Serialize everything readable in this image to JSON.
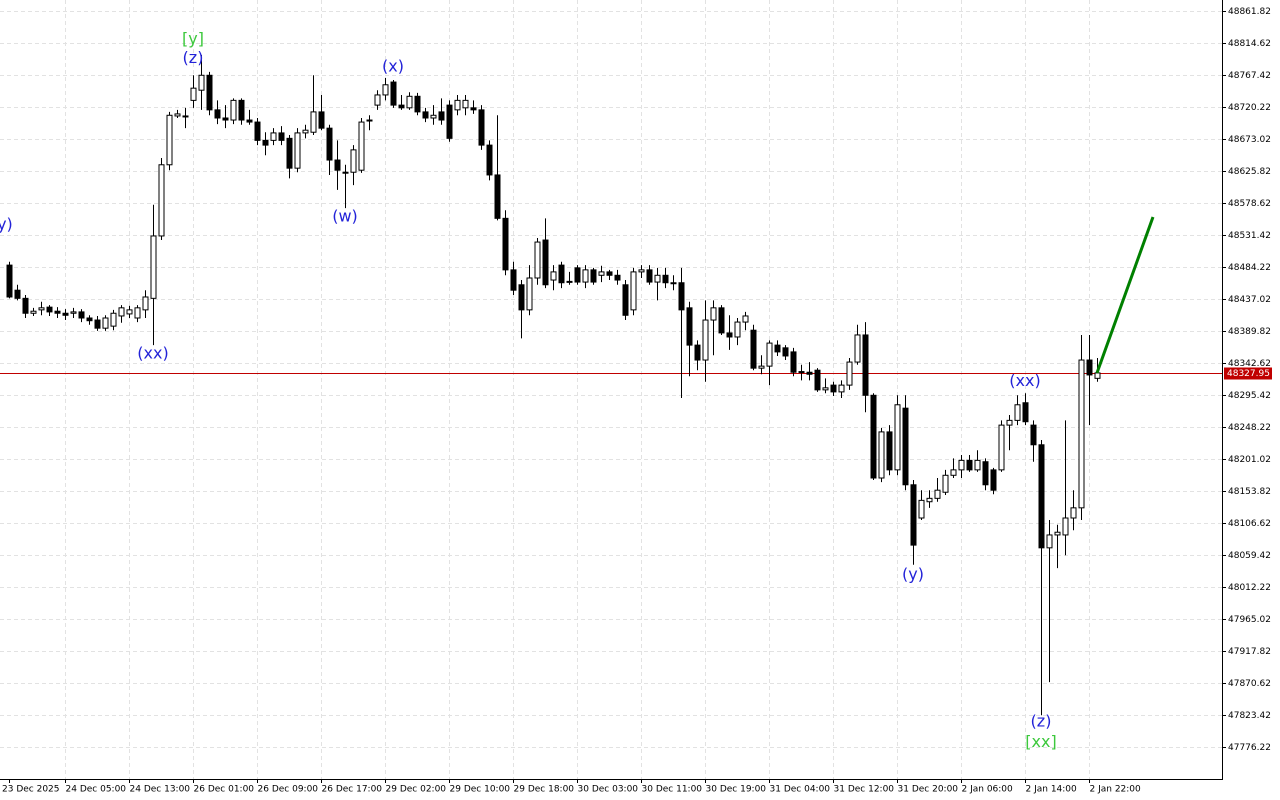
{
  "chart_data": {
    "type": "candlestick",
    "ylim": [
      47729.03,
      48878.04
    ],
    "yticks": [
      48861.82,
      48814.62,
      48767.42,
      48720.22,
      48673.02,
      48625.82,
      48578.62,
      48531.42,
      48484.22,
      48437.02,
      48389.82,
      48342.62,
      48295.42,
      48248.22,
      48201.02,
      48153.82,
      48106.62,
      48059.42,
      48012.22,
      47965.02,
      47917.82,
      47870.62,
      47823.42,
      47776.22
    ],
    "grid": true,
    "current_price": 48327.95,
    "price_line_color": "#c00000",
    "bull_color": "#ffffff",
    "bear_color": "#000000",
    "categories": [
      "23 Dec 2025",
      null,
      null,
      null,
      null,
      null,
      null,
      "24 Dec 05:00",
      null,
      null,
      null,
      null,
      null,
      null,
      null,
      "24 Dec 13:00",
      null,
      null,
      null,
      null,
      null,
      null,
      null,
      "26 Dec 01:00",
      null,
      null,
      null,
      null,
      null,
      null,
      null,
      "26 Dec 09:00",
      null,
      null,
      null,
      null,
      null,
      null,
      null,
      "26 Dec 17:00",
      null,
      null,
      null,
      null,
      null,
      null,
      null,
      "29 Dec 02:00",
      null,
      null,
      null,
      null,
      null,
      null,
      null,
      "29 Dec 10:00",
      null,
      null,
      null,
      null,
      null,
      null,
      null,
      "29 Dec 18:00",
      null,
      null,
      null,
      null,
      null,
      null,
      null,
      "30 Dec 03:00",
      null,
      null,
      null,
      null,
      null,
      null,
      null,
      "30 Dec 11:00",
      null,
      null,
      null,
      null,
      null,
      null,
      null,
      "30 Dec 19:00",
      null,
      null,
      null,
      null,
      null,
      null,
      null,
      "31 Dec 04:00",
      null,
      null,
      null,
      null,
      null,
      null,
      null,
      "31 Dec 12:00",
      null,
      null,
      null,
      null,
      null,
      null,
      null,
      "31 Dec 20:00",
      null,
      null,
      null,
      null,
      null,
      null,
      null,
      "2 Jan 06:00",
      null,
      null,
      null,
      null,
      null,
      null,
      null,
      "2 Jan 14:00",
      null,
      null,
      null,
      null,
      null,
      null,
      null,
      "2 Jan 22:00",
      null
    ],
    "ohlc": [
      [
        48487,
        48492,
        48438,
        48440
      ],
      [
        48450,
        48458,
        48435,
        48438
      ],
      [
        48438,
        48443,
        48409,
        48416
      ],
      [
        48416,
        48424,
        48412,
        48419
      ],
      [
        48421,
        48433,
        48413,
        48424
      ],
      [
        48425,
        48428,
        48412,
        48418
      ],
      [
        48419,
        48425,
        48409,
        48416
      ],
      [
        48416,
        48422,
        48406,
        48413
      ],
      [
        48416,
        48424,
        48409,
        48418
      ],
      [
        48418,
        48422,
        48403,
        48409
      ],
      [
        48409,
        48413,
        48399,
        48405
      ],
      [
        48406,
        48412,
        48390,
        48394
      ],
      [
        48394,
        48413,
        48390,
        48409
      ],
      [
        48397,
        48421,
        48391,
        48416
      ],
      [
        48412,
        48428,
        48402,
        48424
      ],
      [
        48415,
        48427,
        48409,
        48421
      ],
      [
        48409,
        48428,
        48403,
        48424
      ],
      [
        48421,
        48450,
        48409,
        48440
      ],
      [
        48438,
        48576,
        48369,
        48530
      ],
      [
        48530,
        48645,
        48524,
        48635
      ],
      [
        48635,
        48713,
        48627,
        48708
      ],
      [
        48707,
        48716,
        48704,
        48710
      ],
      [
        48707,
        48719,
        48689,
        48706
      ],
      [
        48730,
        48767,
        48719,
        48748
      ],
      [
        48745,
        48797,
        48716,
        48767
      ],
      [
        48767,
        48772,
        48708,
        48716
      ],
      [
        48716,
        48730,
        48695,
        48704
      ],
      [
        48704,
        48723,
        48689,
        48701
      ],
      [
        48701,
        48733,
        48695,
        48730
      ],
      [
        48730,
        48733,
        48694,
        48701
      ],
      [
        48701,
        48716,
        48694,
        48698
      ],
      [
        48698,
        48704,
        48664,
        48671
      ],
      [
        48671,
        48683,
        48649,
        48664
      ],
      [
        48671,
        48689,
        48664,
        48682
      ],
      [
        48682,
        48692,
        48664,
        48671
      ],
      [
        48674,
        48679,
        48615,
        48630
      ],
      [
        48630,
        48689,
        48624,
        48682
      ],
      [
        48682,
        48694,
        48674,
        48686
      ],
      [
        48683,
        48767,
        48679,
        48713
      ],
      [
        48713,
        48738,
        48686,
        48689
      ],
      [
        48689,
        48694,
        48620,
        48642
      ],
      [
        48642,
        48671,
        48598,
        48627
      ],
      [
        48624,
        48635,
        48571,
        48623
      ],
      [
        48624,
        48664,
        48605,
        48657
      ],
      [
        48627,
        48704,
        48623,
        48698
      ],
      [
        48701,
        48708,
        48686,
        48700
      ],
      [
        48723,
        48745,
        48716,
        48738
      ],
      [
        48738,
        48763,
        48730,
        48753
      ],
      [
        48757,
        48760,
        48719,
        48723
      ],
      [
        48723,
        48738,
        48716,
        48719
      ],
      [
        48719,
        48742,
        48716,
        48736
      ],
      [
        48736,
        48741,
        48708,
        48713
      ],
      [
        48713,
        48719,
        48698,
        48704
      ],
      [
        48704,
        48723,
        48694,
        48708
      ],
      [
        48713,
        48733,
        48694,
        48701
      ],
      [
        48723,
        48730,
        48669,
        48674
      ],
      [
        48716,
        48738,
        48708,
        48730
      ],
      [
        48719,
        48738,
        48708,
        48730
      ],
      [
        48719,
        48730,
        48710,
        48716
      ],
      [
        48716,
        48723,
        48657,
        48664
      ],
      [
        48664,
        48671,
        48612,
        48620
      ],
      [
        48620,
        48708,
        48553,
        48556
      ],
      [
        48556,
        48568,
        48472,
        48480
      ],
      [
        48480,
        48492,
        48443,
        48450
      ],
      [
        48458,
        48465,
        48379,
        48421
      ],
      [
        48421,
        48487,
        48413,
        48468
      ],
      [
        48468,
        48527,
        48458,
        48521
      ],
      [
        48524,
        48556,
        48453,
        48458
      ],
      [
        48465,
        48487,
        48450,
        48477
      ],
      [
        48487,
        48492,
        48453,
        48461
      ],
      [
        48462,
        48477,
        48458,
        48463
      ],
      [
        48483,
        48487,
        48458,
        48462
      ],
      [
        48462,
        48487,
        48453,
        48480
      ],
      [
        48480,
        48483,
        48458,
        48462
      ],
      [
        48472,
        48486,
        48462,
        48477
      ],
      [
        48477,
        48480,
        48465,
        48472
      ],
      [
        48472,
        48480,
        48458,
        48465
      ],
      [
        48458,
        48465,
        48406,
        48413
      ],
      [
        48421,
        48483,
        48413,
        48477
      ],
      [
        48477,
        48487,
        48468,
        48480
      ],
      [
        48480,
        48487,
        48458,
        48462
      ],
      [
        48462,
        48483,
        48435,
        48472
      ],
      [
        48472,
        48483,
        48453,
        48461
      ],
      [
        48461,
        48472,
        48450,
        48460
      ],
      [
        48461,
        48483,
        48291,
        48421
      ],
      [
        48424,
        48433,
        48323,
        48369
      ],
      [
        48369,
        48376,
        48332,
        48347
      ],
      [
        48347,
        48435,
        48315,
        48406
      ],
      [
        48406,
        48435,
        48354,
        48424
      ],
      [
        48424,
        48428,
        48384,
        48387
      ],
      [
        48387,
        48413,
        48362,
        48381
      ],
      [
        48381,
        48409,
        48369,
        48403
      ],
      [
        48403,
        48418,
        48391,
        48412
      ],
      [
        48391,
        48399,
        48332,
        48335
      ],
      [
        48335,
        48354,
        48326,
        48338
      ],
      [
        48338,
        48376,
        48310,
        48372
      ],
      [
        48369,
        48376,
        48353,
        48359
      ],
      [
        48365,
        48369,
        48347,
        48353
      ],
      [
        48359,
        48365,
        48323,
        48329
      ],
      [
        48329,
        48340,
        48317,
        48330
      ],
      [
        48329,
        48344,
        48317,
        48326
      ],
      [
        48332,
        48335,
        48300,
        48303
      ],
      [
        48303,
        48320,
        48298,
        48306
      ],
      [
        48310,
        48315,
        48294,
        48300
      ],
      [
        48300,
        48317,
        48291,
        48310
      ],
      [
        48310,
        48350,
        48303,
        48344
      ],
      [
        48344,
        48399,
        48340,
        48384
      ],
      [
        48384,
        48403,
        48270,
        48295
      ],
      [
        48295,
        48298,
        48170,
        48173
      ],
      [
        48173,
        48247,
        48167,
        48241
      ],
      [
        48241,
        48251,
        48177,
        48185
      ],
      [
        48185,
        48295,
        48177,
        48281
      ],
      [
        48276,
        48295,
        48155,
        48163
      ],
      [
        48163,
        48170,
        48045,
        48074
      ],
      [
        48114,
        48155,
        48111,
        48140
      ],
      [
        48138,
        48155,
        48129,
        48143
      ],
      [
        48143,
        48173,
        48138,
        48155
      ],
      [
        48152,
        48185,
        48148,
        48177
      ],
      [
        48177,
        48202,
        48173,
        48185
      ],
      [
        48185,
        48207,
        48173,
        48199
      ],
      [
        48199,
        48207,
        48182,
        48185
      ],
      [
        48185,
        48214,
        48182,
        48199
      ],
      [
        48197,
        48202,
        48155,
        48163
      ],
      [
        48185,
        48188,
        48149,
        48155
      ],
      [
        48185,
        48258,
        48182,
        48251
      ],
      [
        48251,
        48266,
        48214,
        48258
      ],
      [
        48258,
        48295,
        48251,
        48281
      ],
      [
        48284,
        48298,
        48251,
        48256
      ],
      [
        48251,
        48258,
        48197,
        48222
      ],
      [
        48222,
        48229,
        47823,
        48070
      ],
      [
        48070,
        48111,
        47872,
        48089
      ],
      [
        48089,
        48104,
        48040,
        48093
      ],
      [
        48089,
        48258,
        48059,
        48114
      ],
      [
        48114,
        48155,
        48096,
        48129
      ],
      [
        48129,
        48384,
        48111,
        48347
      ],
      [
        48347,
        48384,
        48251,
        48325
      ],
      [
        48320,
        48350,
        48315,
        48328
      ]
    ],
    "forecast": {
      "color": "#008000",
      "x": [
        136,
        143
      ],
      "y": [
        48328,
        48558
      ]
    },
    "annotations": [
      {
        "text": "(y)",
        "index": -0.9,
        "price": 48546,
        "color": "#2323d8"
      },
      {
        "text": "[y]",
        "index": 23,
        "price": 48820,
        "color": "#3cc83c"
      },
      {
        "text": "(z)",
        "index": 23,
        "price": 48792,
        "color": "#2323d8"
      },
      {
        "text": "(x)",
        "index": 48,
        "price": 48779,
        "color": "#2323d8"
      },
      {
        "text": "(w)",
        "index": 42,
        "price": 48558,
        "color": "#2323d8"
      },
      {
        "text": "(xx)",
        "index": 18,
        "price": 48356,
        "color": "#2323d8"
      },
      {
        "text": "(xx)",
        "index": 127,
        "price": 48315,
        "color": "#2323d8"
      },
      {
        "text": "(y)",
        "index": 113,
        "price": 48030,
        "color": "#2323d8"
      },
      {
        "text": "(z)",
        "index": 129,
        "price": 47813,
        "color": "#2323d8"
      },
      {
        "text": "[xx]",
        "index": 129,
        "price": 47783,
        "color": "#3cc83c"
      }
    ]
  }
}
